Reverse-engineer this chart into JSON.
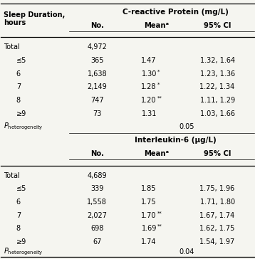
{
  "title_col1": "Sleep Duration,\nhours",
  "section1_header": "C-reactive Protein (mg/L)",
  "section2_header": "Interleukin-6 (μg/L)",
  "col_headers": [
    "No.",
    "Meanᵃ",
    "95% CI"
  ],
  "crp_rows": [
    [
      "Total",
      "4,972",
      "",
      ""
    ],
    [
      "≤5",
      "365",
      "1.47",
      "1.32, 1.64"
    ],
    [
      "6",
      "1,638",
      "1.30*",
      "1.23, 1.36"
    ],
    [
      "7",
      "2,149",
      "1.28*",
      "1.22, 1.34"
    ],
    [
      "8",
      "747",
      "1.20**",
      "1.11, 1.29"
    ],
    [
      "≥9",
      "73",
      "1.31",
      "1.03, 1.66"
    ]
  ],
  "crp_phet": "0.05",
  "il6_rows": [
    [
      "Total",
      "4,689",
      "",
      ""
    ],
    [
      "≤5",
      "339",
      "1.85",
      "1.75, 1.96"
    ],
    [
      "6",
      "1,558",
      "1.75",
      "1.71, 1.80"
    ],
    [
      "7",
      "2,027",
      "1.70**",
      "1.67, 1.74"
    ],
    [
      "8",
      "698",
      "1.69**",
      "1.62, 1.75"
    ],
    [
      "≥9",
      "67",
      "1.74",
      "1.54, 1.97"
    ]
  ],
  "il6_phet": "0.04",
  "bg_color": "#f5f5f0"
}
